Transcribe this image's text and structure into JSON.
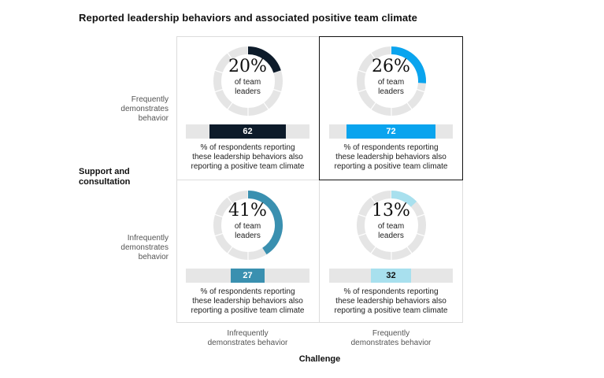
{
  "chart_data": {
    "type": "donut-matrix",
    "title": "Reported leadership behaviors and associated positive team climate",
    "y_axis": {
      "title": [
        "Support and",
        "consultation"
      ],
      "labels": [
        [
          "Frequently",
          "demonstrates",
          "behavior"
        ],
        [
          "Infrequently",
          "demonstrates",
          "behavior"
        ]
      ]
    },
    "x_axis": {
      "title": "Challenge",
      "labels": [
        [
          "Infrequently",
          "demonstrates behavior"
        ],
        [
          "Frequently",
          "demonstrates behavior"
        ]
      ]
    },
    "cells": [
      {
        "support": "Frequently demonstrates behavior",
        "challenge": "Infrequently demonstrates behavior",
        "percent_leaders": 20,
        "percent_label": "20%",
        "leaders_label": [
          "of team",
          "leaders"
        ],
        "percent_positive_climate": 62,
        "bar_label": "62",
        "color": "#0d1b2a",
        "caption": [
          "% of respondents reporting",
          "these leadership behaviors also",
          "reporting a positive team climate"
        ]
      },
      {
        "support": "Frequently demonstrates behavior",
        "challenge": "Frequently demonstrates behavior",
        "percent_leaders": 26,
        "percent_label": "26%",
        "leaders_label": [
          "of team",
          "leaders"
        ],
        "percent_positive_climate": 72,
        "bar_label": "72",
        "color": "#0aa4ee",
        "caption": [
          "% of respondents reporting",
          "these leadership behaviors also",
          "reporting a positive team climate"
        ]
      },
      {
        "support": "Infrequently demonstrates behavior",
        "challenge": "Infrequently demonstrates behavior",
        "percent_leaders": 41,
        "percent_label": "41%",
        "leaders_label": [
          "of team",
          "leaders"
        ],
        "percent_positive_climate": 27,
        "bar_label": "27",
        "color": "#3a90b0",
        "caption": [
          "% of respondents reporting",
          "these leadership behaviors also",
          "reporting a positive team climate"
        ]
      },
      {
        "support": "Infrequently demonstrates behavior",
        "challenge": "Frequently demonstrates behavior",
        "percent_leaders": 13,
        "percent_label": "13%",
        "leaders_label": [
          "of team",
          "leaders"
        ],
        "percent_positive_climate": 32,
        "bar_label": "32",
        "color": "#a8e0ee",
        "caption": [
          "% of respondents reporting",
          "these leadership behaviors also",
          "reporting a positive team climate"
        ]
      }
    ],
    "ring_track_color": "#e5e5e5",
    "bar_track_color": "#e6e6e6",
    "highlighted_cell": 1
  }
}
